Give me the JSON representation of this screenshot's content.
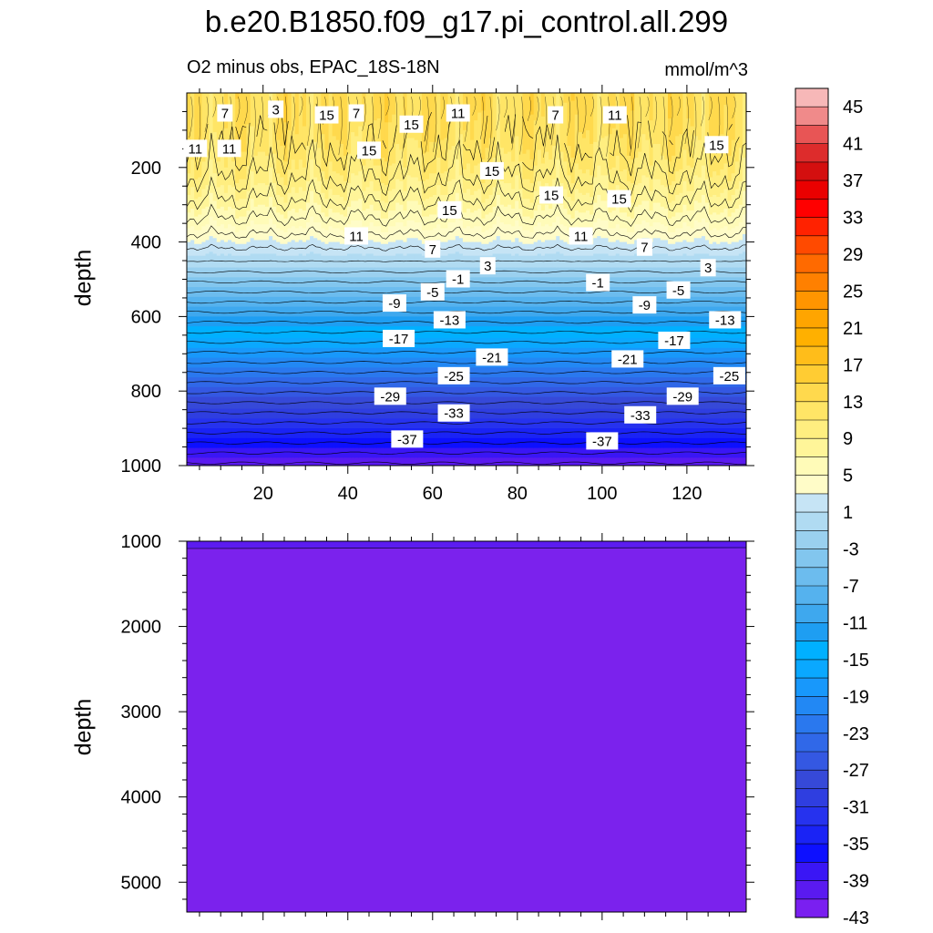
{
  "chart_data": {
    "type": "contour",
    "title": "b.e20.B1850.f09_g17.pi_control.all.299",
    "subtitle": "O2 minus obs, EPAC_18S-18N",
    "units": "mmol/m^3",
    "ylabel": "depth",
    "x_ticks": [
      20,
      40,
      60,
      80,
      100,
      120
    ],
    "x_range": [
      2,
      134
    ],
    "panels": [
      {
        "name": "upper",
        "ylim": [
          1000,
          0
        ],
        "y_ticks": [
          200,
          400,
          600,
          800,
          1000
        ],
        "contour_labels": [
          {
            "x": 11,
            "y": 55,
            "v": "7"
          },
          {
            "x": 23,
            "y": 45,
            "v": "3"
          },
          {
            "x": 35,
            "y": 60,
            "v": "15"
          },
          {
            "x": 42,
            "y": 55,
            "v": "7"
          },
          {
            "x": 55,
            "y": 85,
            "v": "15"
          },
          {
            "x": 66,
            "y": 55,
            "v": "11"
          },
          {
            "x": 89,
            "y": 60,
            "v": "7"
          },
          {
            "x": 103,
            "y": 60,
            "v": "11"
          },
          {
            "x": 4,
            "y": 150,
            "v": "11"
          },
          {
            "x": 12,
            "y": 150,
            "v": "11"
          },
          {
            "x": 45,
            "y": 155,
            "v": "15"
          },
          {
            "x": 127,
            "y": 140,
            "v": "15"
          },
          {
            "x": 74,
            "y": 210,
            "v": "15"
          },
          {
            "x": 88,
            "y": 275,
            "v": "15"
          },
          {
            "x": 104,
            "y": 285,
            "v": "15"
          },
          {
            "x": 64,
            "y": 315,
            "v": "15"
          },
          {
            "x": 42,
            "y": 385,
            "v": "11"
          },
          {
            "x": 95,
            "y": 385,
            "v": "11"
          },
          {
            "x": 60,
            "y": 420,
            "v": "7"
          },
          {
            "x": 110,
            "y": 415,
            "v": "7"
          },
          {
            "x": 73,
            "y": 465,
            "v": "3"
          },
          {
            "x": 125,
            "y": 470,
            "v": "3"
          },
          {
            "x": 66,
            "y": 500,
            "v": "-1"
          },
          {
            "x": 99,
            "y": 510,
            "v": "-1"
          },
          {
            "x": 60,
            "y": 535,
            "v": "-5"
          },
          {
            "x": 118,
            "y": 530,
            "v": "-5"
          },
          {
            "x": 51,
            "y": 565,
            "v": "-9"
          },
          {
            "x": 110,
            "y": 570,
            "v": "-9"
          },
          {
            "x": 64,
            "y": 610,
            "v": "-13"
          },
          {
            "x": 129,
            "y": 610,
            "v": "-13"
          },
          {
            "x": 52,
            "y": 660,
            "v": "-17"
          },
          {
            "x": 117,
            "y": 665,
            "v": "-17"
          },
          {
            "x": 74,
            "y": 710,
            "v": "-21"
          },
          {
            "x": 106,
            "y": 715,
            "v": "-21"
          },
          {
            "x": 65,
            "y": 760,
            "v": "-25"
          },
          {
            "x": 130,
            "y": 760,
            "v": "-25"
          },
          {
            "x": 50,
            "y": 815,
            "v": "-29"
          },
          {
            "x": 119,
            "y": 815,
            "v": "-29"
          },
          {
            "x": 65,
            "y": 860,
            "v": "-33"
          },
          {
            "x": 109,
            "y": 865,
            "v": "-33"
          },
          {
            "x": 54,
            "y": 930,
            "v": "-37"
          },
          {
            "x": 100,
            "y": 935,
            "v": "-37"
          }
        ]
      },
      {
        "name": "lower",
        "ylim": [
          5350,
          1000
        ],
        "y_ticks": [
          1000,
          2000,
          3000,
          4000,
          5000
        ],
        "value": "< -45"
      }
    ],
    "colorbar": {
      "labels": [
        "45",
        "41",
        "37",
        "33",
        "29",
        "25",
        "21",
        "17",
        "13",
        "9",
        "5",
        "1",
        "-3",
        "-7",
        "-11",
        "-15",
        "-19",
        "-23",
        "-27",
        "-31",
        "-35",
        "-39",
        "-43"
      ],
      "colors": [
        "#f7b8b8",
        "#f08a8a",
        "#e85555",
        "#dd2c2c",
        "#d40f0f",
        "#ea0000",
        "#ff0000",
        "#ff2200",
        "#ff4a00",
        "#ff6a00",
        "#ff8000",
        "#ff9500",
        "#ffa500",
        "#ffb000",
        "#ffbd1a",
        "#ffcc33",
        "#ffd94d",
        "#ffe566",
        "#ffee80",
        "#fff599",
        "#fffbb8",
        "#fffcc8",
        "#c6e4f5",
        "#b0dbf2",
        "#9ad0ef",
        "#82c6ee",
        "#6cbcee",
        "#55b2ee",
        "#3ea8ee",
        "#1e9ef2",
        "#00b0ff",
        "#0aa8ff",
        "#1898fb",
        "#2288f4",
        "#2a78ee",
        "#3068e8",
        "#3458e2",
        "#3649d8",
        "#2f3ee0",
        "#2632ee",
        "#1a23f5",
        "#0d10ff",
        "#3a16f5",
        "#5a1af0",
        "#7a1ff0"
      ]
    }
  }
}
